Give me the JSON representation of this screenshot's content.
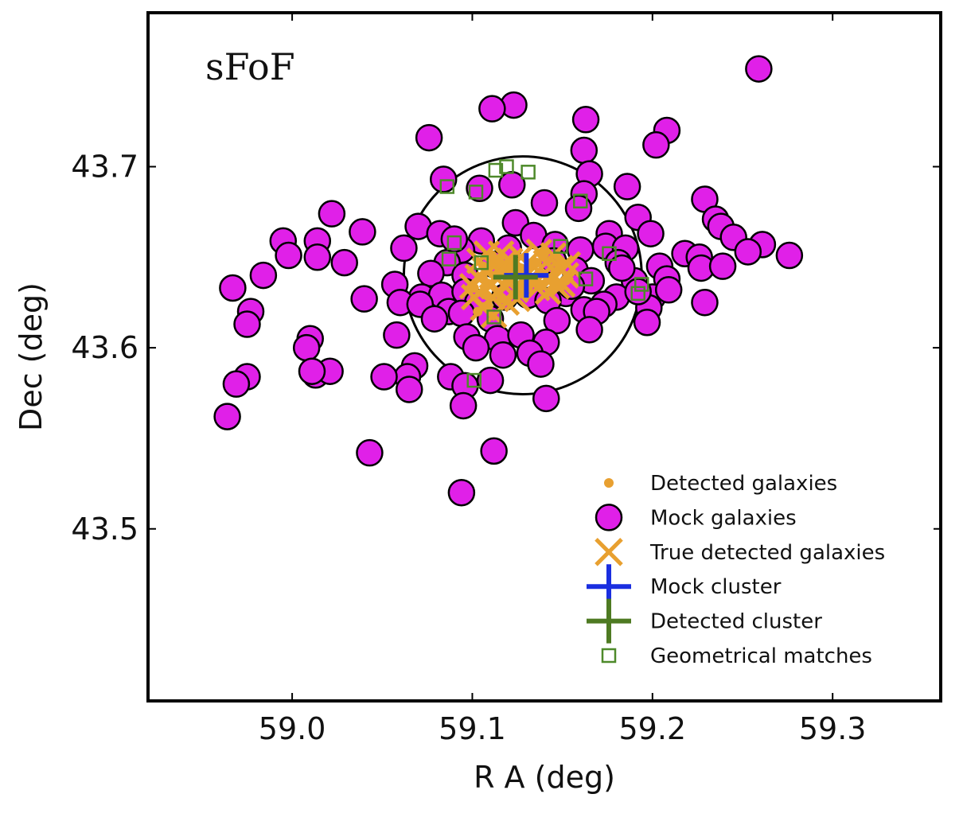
{
  "chart_data": {
    "type": "scatter",
    "panel_label": "sFoF",
    "xlabel": "R A  (deg)",
    "ylabel": "Dec  (deg)",
    "xlim": [
      58.92,
      59.36
    ],
    "ylim": [
      43.405,
      43.785
    ],
    "xticks": [
      59.0,
      59.1,
      59.2,
      59.3
    ],
    "xtick_labels": [
      "59.0",
      "59.1",
      "59.2",
      "59.3"
    ],
    "yticks": [
      43.5,
      43.6,
      43.7
    ],
    "ytick_labels": [
      "43.5",
      "43.6",
      "43.7"
    ],
    "grid": false,
    "legend_position": "lower-right",
    "colors": {
      "mock": "#e020e8",
      "detected": "#e8a030",
      "mock_cluster": "#1a2ee0",
      "detected_cluster": "#4e7a22",
      "matches": "#4e8a2a",
      "circle": "#000000"
    },
    "legend": [
      {
        "key": "detected",
        "label": "Detected galaxies"
      },
      {
        "key": "mock",
        "label": "Mock galaxies"
      },
      {
        "key": "true_detected",
        "label": "True detected galaxies"
      },
      {
        "key": "mock_cluster",
        "label": "Mock cluster"
      },
      {
        "key": "detected_cluster",
        "label": "Detected cluster"
      },
      {
        "key": "matches",
        "label": "Geometrical matches"
      }
    ],
    "match_circle": {
      "center": [
        59.128,
        43.64
      ],
      "radius_deg": 0.066
    },
    "mock_cluster": [
      59.13,
      43.64
    ],
    "detected_cluster": [
      59.124,
      43.639
    ],
    "mock_galaxies": [
      [
        59.259,
        43.754
      ],
      [
        59.123,
        43.734
      ],
      [
        59.111,
        43.732
      ],
      [
        59.163,
        43.726
      ],
      [
        59.208,
        43.72
      ],
      [
        59.076,
        43.716
      ],
      [
        59.202,
        43.712
      ],
      [
        59.162,
        43.709
      ],
      [
        59.165,
        43.696
      ],
      [
        59.186,
        43.689
      ],
      [
        59.122,
        43.69
      ],
      [
        59.084,
        43.693
      ],
      [
        59.104,
        43.688
      ],
      [
        59.14,
        43.68
      ],
      [
        59.229,
        43.682
      ],
      [
        59.162,
        43.685
      ],
      [
        59.159,
        43.677
      ],
      [
        59.022,
        43.674
      ],
      [
        59.235,
        43.671
      ],
      [
        59.192,
        43.672
      ],
      [
        59.124,
        43.669
      ],
      [
        59.238,
        43.667
      ],
      [
        59.07,
        43.667
      ],
      [
        59.039,
        43.664
      ],
      [
        59.082,
        43.663
      ],
      [
        59.245,
        43.661
      ],
      [
        59.176,
        43.663
      ],
      [
        59.199,
        43.663
      ],
      [
        58.995,
        43.659
      ],
      [
        59.014,
        43.659
      ],
      [
        59.062,
        43.655
      ],
      [
        59.105,
        43.659
      ],
      [
        59.134,
        43.662
      ],
      [
        59.146,
        43.657
      ],
      [
        59.16,
        43.654
      ],
      [
        59.174,
        43.656
      ],
      [
        59.185,
        43.655
      ],
      [
        59.218,
        43.652
      ],
      [
        59.226,
        43.65
      ],
      [
        59.261,
        43.657
      ],
      [
        59.276,
        43.651
      ],
      [
        59.253,
        43.653
      ],
      [
        58.998,
        43.651
      ],
      [
        59.014,
        43.65
      ],
      [
        59.094,
        43.654
      ],
      [
        59.12,
        43.655
      ],
      [
        59.086,
        43.647
      ],
      [
        59.112,
        43.646
      ],
      [
        59.157,
        43.643
      ],
      [
        59.181,
        43.647
      ],
      [
        59.204,
        43.645
      ],
      [
        59.029,
        43.647
      ],
      [
        59.077,
        43.641
      ],
      [
        59.096,
        43.64
      ],
      [
        59.166,
        43.637
      ],
      [
        59.19,
        43.637
      ],
      [
        59.208,
        43.638
      ],
      [
        59.227,
        43.644
      ],
      [
        59.239,
        43.645
      ],
      [
        59.057,
        43.635
      ],
      [
        58.984,
        43.64
      ],
      [
        58.967,
        43.633
      ],
      [
        59.072,
        43.628
      ],
      [
        59.083,
        43.629
      ],
      [
        59.096,
        43.631
      ],
      [
        59.152,
        43.63
      ],
      [
        59.18,
        43.628
      ],
      [
        59.2,
        43.628
      ],
      [
        59.209,
        43.632
      ],
      [
        59.04,
        43.627
      ],
      [
        59.06,
        43.625
      ],
      [
        59.071,
        43.624
      ],
      [
        59.087,
        43.62
      ],
      [
        59.103,
        43.625
      ],
      [
        59.118,
        43.628
      ],
      [
        59.131,
        43.629
      ],
      [
        59.142,
        43.626
      ],
      [
        59.162,
        43.621
      ],
      [
        59.173,
        43.624
      ],
      [
        59.198,
        43.622
      ],
      [
        59.229,
        43.625
      ],
      [
        58.977,
        43.62
      ],
      [
        58.975,
        43.613
      ],
      [
        59.079,
        43.616
      ],
      [
        59.094,
        43.619
      ],
      [
        59.11,
        43.616
      ],
      [
        59.147,
        43.615
      ],
      [
        59.169,
        43.62
      ],
      [
        59.197,
        43.614
      ],
      [
        59.097,
        43.606
      ],
      [
        59.114,
        43.605
      ],
      [
        59.127,
        43.607
      ],
      [
        59.141,
        43.603
      ],
      [
        59.165,
        43.61
      ],
      [
        59.058,
        43.607
      ],
      [
        59.01,
        43.605
      ],
      [
        59.008,
        43.6
      ],
      [
        59.102,
        43.6
      ],
      [
        59.117,
        43.596
      ],
      [
        59.132,
        43.597
      ],
      [
        59.068,
        43.59
      ],
      [
        59.064,
        43.584
      ],
      [
        59.013,
        43.585
      ],
      [
        59.021,
        43.587
      ],
      [
        59.011,
        43.587
      ],
      [
        59.051,
        43.584
      ],
      [
        59.088,
        43.584
      ],
      [
        59.11,
        43.582
      ],
      [
        59.096,
        43.579
      ],
      [
        58.975,
        43.584
      ],
      [
        58.969,
        43.58
      ],
      [
        59.065,
        43.577
      ],
      [
        59.095,
        43.568
      ],
      [
        59.141,
        43.572
      ],
      [
        59.138,
        43.591
      ],
      [
        58.964,
        43.562
      ],
      [
        59.043,
        43.542
      ],
      [
        59.112,
        43.543
      ],
      [
        59.094,
        43.52
      ],
      [
        59.155,
        43.634
      ],
      [
        59.183,
        43.644
      ],
      [
        59.145,
        43.648
      ],
      [
        59.09,
        43.66
      ],
      [
        59.192,
        43.631
      ]
    ],
    "detected_galaxies": [
      [
        59.106,
        43.645
      ],
      [
        59.111,
        43.651
      ],
      [
        59.113,
        43.64
      ],
      [
        59.118,
        43.635
      ],
      [
        59.101,
        43.633
      ],
      [
        59.116,
        43.627
      ],
      [
        59.109,
        43.623
      ],
      [
        59.103,
        43.62
      ],
      [
        59.121,
        43.644
      ],
      [
        59.124,
        43.63
      ],
      [
        59.127,
        43.644
      ],
      [
        59.132,
        43.639
      ],
      [
        59.136,
        43.647
      ],
      [
        59.14,
        43.652
      ],
      [
        59.146,
        43.642
      ],
      [
        59.144,
        43.632
      ],
      [
        59.138,
        43.635
      ],
      [
        59.149,
        43.646
      ],
      [
        59.152,
        43.637
      ],
      [
        59.131,
        43.633
      ],
      [
        59.106,
        43.638
      ],
      [
        59.108,
        43.629
      ],
      [
        59.12,
        43.637
      ],
      [
        59.115,
        43.648
      ]
    ],
    "true_detected_galaxies": [
      [
        59.104,
        43.648
      ],
      [
        59.108,
        43.652
      ],
      [
        59.112,
        43.645
      ],
      [
        59.117,
        43.646
      ],
      [
        59.103,
        43.639
      ],
      [
        59.109,
        43.635
      ],
      [
        59.115,
        43.631
      ],
      [
        59.101,
        43.628
      ],
      [
        59.106,
        43.622
      ],
      [
        59.112,
        43.618
      ],
      [
        59.119,
        43.625
      ],
      [
        59.122,
        43.637
      ],
      [
        59.127,
        43.65
      ],
      [
        59.129,
        43.643
      ],
      [
        59.134,
        43.645
      ],
      [
        59.137,
        43.653
      ],
      [
        59.141,
        43.647
      ],
      [
        59.145,
        43.651
      ],
      [
        59.149,
        43.644
      ],
      [
        59.152,
        43.64
      ],
      [
        59.147,
        43.634
      ],
      [
        59.142,
        43.631
      ],
      [
        59.136,
        43.633
      ],
      [
        59.132,
        43.637
      ],
      [
        59.139,
        43.64
      ],
      [
        59.144,
        43.638
      ],
      [
        59.124,
        43.632
      ],
      [
        59.118,
        43.642
      ],
      [
        59.114,
        43.638
      ],
      [
        59.107,
        43.643
      ],
      [
        59.1,
        43.634
      ],
      [
        59.111,
        43.628
      ],
      [
        59.125,
        43.627
      ],
      [
        59.15,
        43.635
      ],
      [
        59.153,
        43.646
      ],
      [
        59.131,
        43.641
      ],
      [
        59.121,
        43.648
      ],
      [
        59.116,
        43.652
      ]
    ],
    "geometrical_matches": [
      [
        59.113,
        43.698
      ],
      [
        59.119,
        43.7
      ],
      [
        59.131,
        43.697
      ],
      [
        59.086,
        43.689
      ],
      [
        59.102,
        43.686
      ],
      [
        59.16,
        43.681
      ],
      [
        59.09,
        43.658
      ],
      [
        59.149,
        43.656
      ],
      [
        59.176,
        43.652
      ],
      [
        59.087,
        43.649
      ],
      [
        59.105,
        43.647
      ],
      [
        59.163,
        43.638
      ],
      [
        59.194,
        43.635
      ],
      [
        59.192,
        43.63
      ],
      [
        59.112,
        43.617
      ],
      [
        59.101,
        43.582
      ]
    ]
  }
}
